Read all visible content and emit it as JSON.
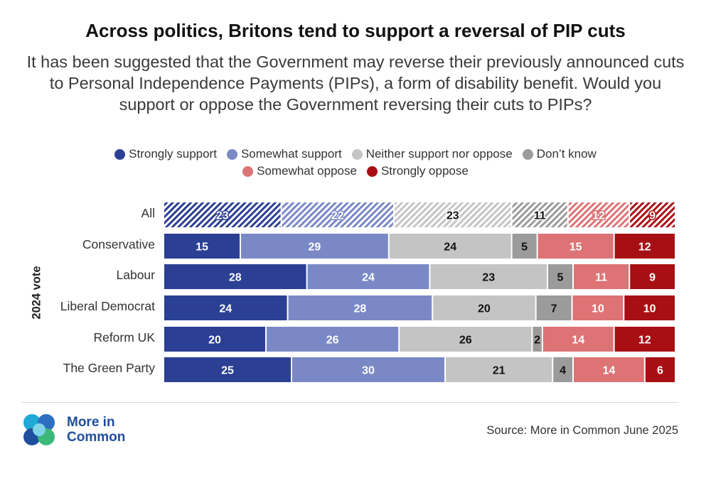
{
  "title": "Across politics, Britons tend to support a reversal of PIP cuts",
  "subtitle": "It has been suggested that the Government may reverse their previously announced cuts to Personal Independence Payments (PIPs), a form of disability benefit. Would you support or oppose the Government reversing their cuts to PIPs?",
  "source": "Source: More in Common June 2025",
  "logo": {
    "line1": "More in",
    "line2": "Common"
  },
  "chart_data": {
    "type": "bar",
    "orientation": "horizontal-stacked-100",
    "title": "Across politics, Britons tend to support a reversal of PIP cuts",
    "ylabel": "2024 vote",
    "categories": [
      "All",
      "Conservative",
      "Labour",
      "Liberal Democrat",
      "Reform UK",
      "The Green Party"
    ],
    "series": [
      {
        "name": "Strongly support",
        "color": "#2b3f93",
        "values": [
          23,
          15,
          28,
          24,
          20,
          25
        ]
      },
      {
        "name": "Somewhat support",
        "color": "#7a89c6",
        "values": [
          22,
          29,
          24,
          28,
          26,
          30
        ]
      },
      {
        "name": "Neither support nor oppose",
        "color": "#c4c4c4",
        "values": [
          23,
          24,
          23,
          20,
          26,
          21
        ]
      },
      {
        "name": "Don’t know",
        "color": "#9b9b9b",
        "values": [
          11,
          5,
          5,
          7,
          2,
          4
        ]
      },
      {
        "name": "Somewhat oppose",
        "color": "#dd7375",
        "values": [
          12,
          15,
          11,
          10,
          14,
          14
        ]
      },
      {
        "name": "Strongly oppose",
        "color": "#a80f14",
        "values": [
          9,
          12,
          9,
          10,
          12,
          6
        ]
      }
    ],
    "label_colors": [
      "#ffffff",
      "#ffffff",
      "#111111",
      "#111111",
      "#ffffff",
      "#ffffff"
    ],
    "hatched_category": "All",
    "legend_placement": "top-center",
    "grid": false
  }
}
